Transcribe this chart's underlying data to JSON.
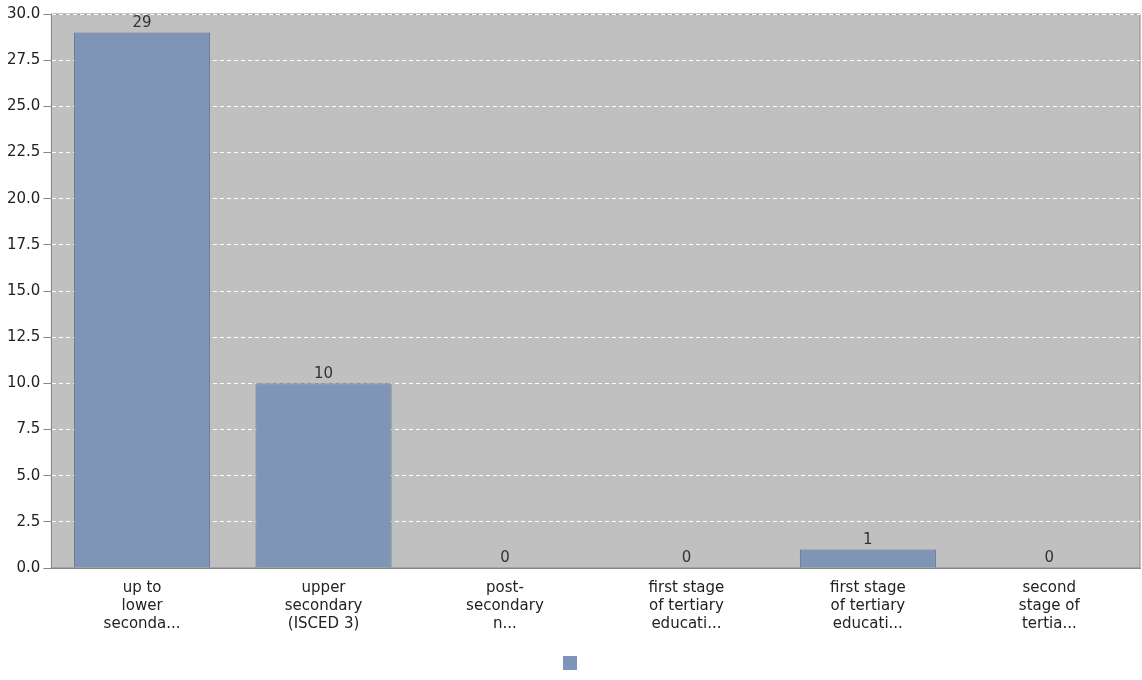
{
  "chart_data": {
    "type": "bar",
    "categories": [
      "up to\nlower\nseconda...",
      "upper\nsecondary\n(ISCED 3)",
      "post-\nsecondary\nn...",
      "first stage\nof tertiary\neducati...",
      "first stage\nof tertiary\neducati...",
      "second\nstage of\ntertia..."
    ],
    "values": [
      29,
      10,
      0,
      0,
      1,
      0
    ],
    "color": "#7f95b8",
    "ylim": [
      0,
      30
    ],
    "yticks": [
      {
        "value": 0,
        "label": "0.0"
      },
      {
        "value": 2.5,
        "label": "2.5"
      },
      {
        "value": 5,
        "label": "5.0"
      },
      {
        "value": 7.5,
        "label": "7.5"
      },
      {
        "value": 10,
        "label": "10.0"
      },
      {
        "value": 12.5,
        "label": "12.5"
      },
      {
        "value": 15,
        "label": "15.0"
      },
      {
        "value": 17.5,
        "label": "17.5"
      },
      {
        "value": 20,
        "label": "20.0"
      },
      {
        "value": 22.5,
        "label": "22.5"
      },
      {
        "value": 25,
        "label": "25.0"
      },
      {
        "value": 27.5,
        "label": "27.5"
      },
      {
        "value": 30,
        "label": "30.0"
      }
    ],
    "grid": "y",
    "data_labels": true
  }
}
